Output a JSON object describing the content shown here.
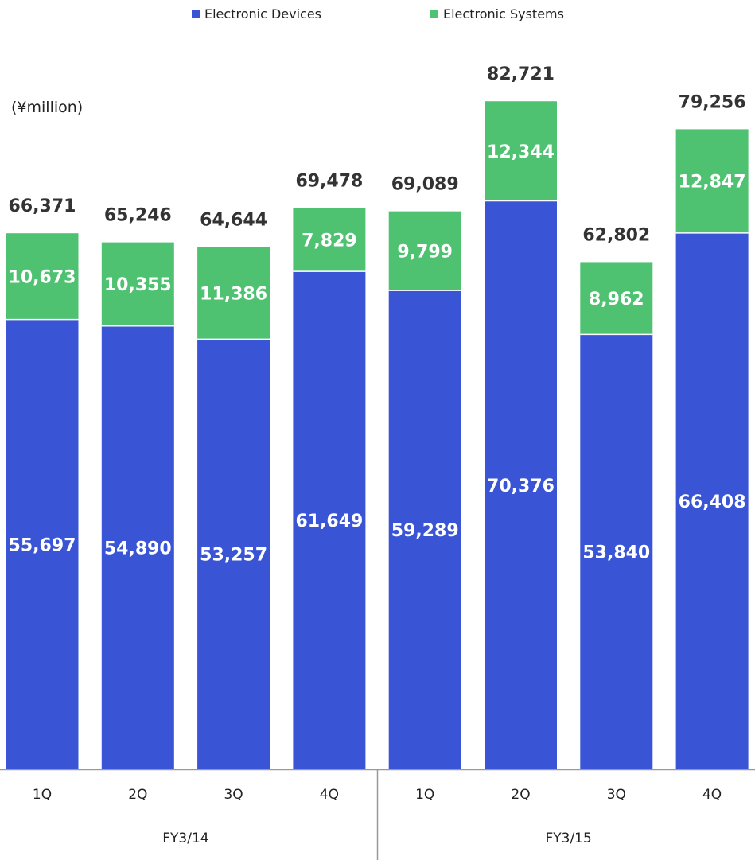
{
  "unit_label": "(¥million)",
  "colors": {
    "devices": "#3954D4",
    "systems": "#4FC272",
    "total_label": "#333333",
    "inner_label": "#ffffff",
    "axis": "#999999",
    "tick_label": "#222222"
  },
  "chart_data": {
    "type": "bar",
    "stacked": true,
    "title": "",
    "xlabel": "",
    "ylabel": "(¥million)",
    "legend_position": "top",
    "grid": false,
    "groups": [
      {
        "label": "FY3/14",
        "categories": [
          "1Q",
          "2Q",
          "3Q",
          "4Q"
        ]
      },
      {
        "label": "FY3/15",
        "categories": [
          "1Q",
          "2Q",
          "3Q",
          "4Q"
        ]
      }
    ],
    "categories": [
      "1Q",
      "2Q",
      "3Q",
      "4Q",
      "1Q",
      "2Q",
      "3Q",
      "4Q"
    ],
    "series": [
      {
        "name": "Electronic Devices",
        "values": [
          55697,
          54890,
          53257,
          61649,
          59289,
          70376,
          53840,
          66408
        ]
      },
      {
        "name": "Electronic Systems",
        "values": [
          10673,
          10355,
          11386,
          7829,
          9799,
          12344,
          8962,
          12847
        ]
      }
    ],
    "series_labels": [
      [
        "55,697",
        "54,890",
        "53,257",
        "61,649",
        "59,289",
        "70,376",
        "53,840",
        "66,408"
      ],
      [
        "10,673",
        "10,355",
        "11,386",
        "7,829",
        "9,799",
        "12,344",
        "8,962",
        "12,847"
      ]
    ],
    "totals": [
      66371,
      65246,
      64644,
      69478,
      69089,
      82721,
      62802,
      79256
    ],
    "total_labels": [
      "66,371",
      "65,246",
      "64,644",
      "69,478",
      "69,089",
      "82,721",
      "62,802",
      "79,256"
    ]
  }
}
